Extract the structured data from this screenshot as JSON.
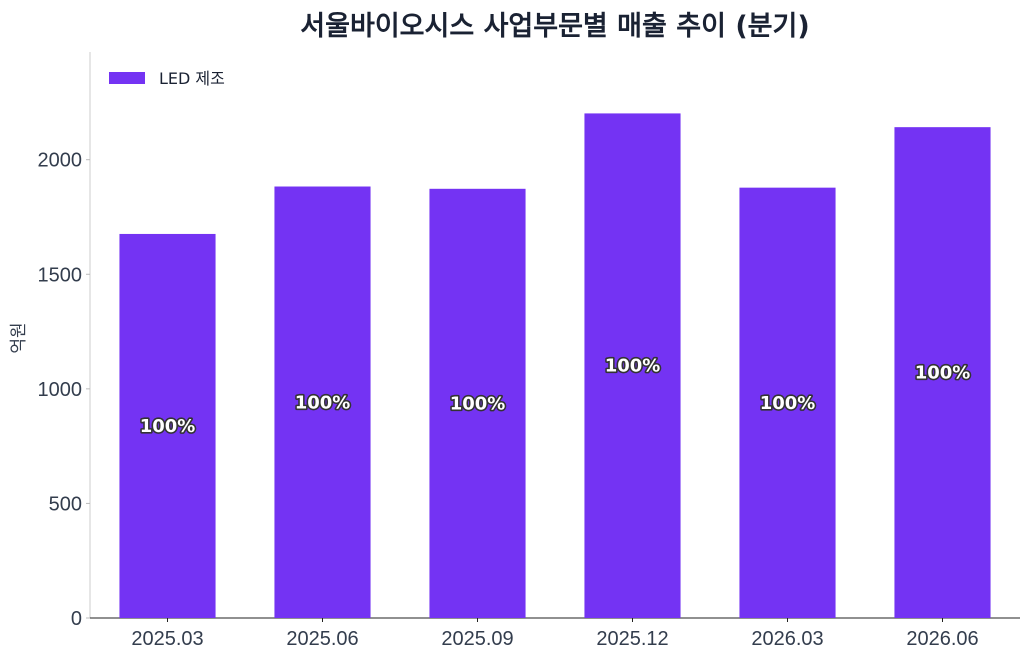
{
  "chart_data": {
    "type": "bar",
    "title": "서울바이오시스 사업부문별 매출 추이 (분기)",
    "xlabel": "",
    "ylabel": "억원",
    "categories": [
      "2025.03",
      "2025.06",
      "2025.09",
      "2025.12",
      "2026.03",
      "2026.06"
    ],
    "series": [
      {
        "name": "LED 제조",
        "values": [
          1676,
          1883,
          1873,
          2202,
          1878,
          2142
        ],
        "data_labels": [
          "100%",
          "100%",
          "100%",
          "100%",
          "100%",
          "100%"
        ],
        "color": "#7433f3"
      }
    ],
    "ylim": [
      0,
      2470
    ],
    "yticks": [
      0,
      500,
      1000,
      1500,
      2000
    ],
    "grid": false,
    "legend_position": "top-left"
  }
}
